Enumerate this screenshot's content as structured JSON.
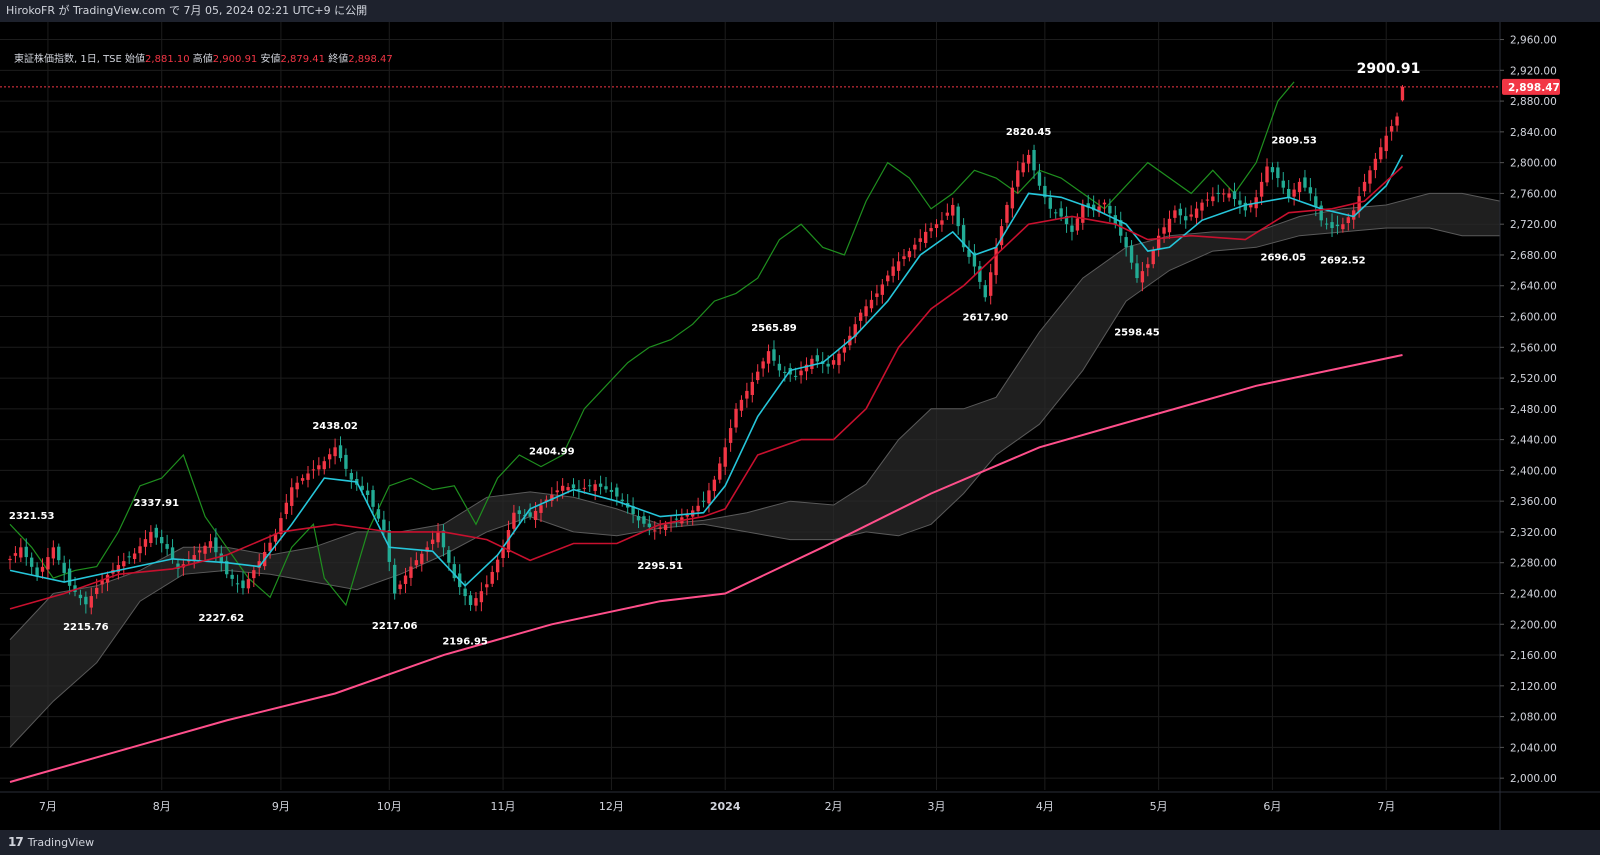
{
  "header": {
    "publish_line": "HirokoFR が TradingView.com で 7月 05, 2024 02:21 UTC+9 に公開"
  },
  "legend": {
    "symbol": "東証株価指数, 1日, TSE",
    "open_label": "始値",
    "open": "2,881.10",
    "high_label": "高値",
    "high": "2,900.91",
    "low_label": "安値",
    "low": "2,879.41",
    "close_label": "終値",
    "close": "2,898.47"
  },
  "footer": {
    "brand": "TradingView",
    "logo_icon": "tradingview-logo-icon"
  },
  "colors": {
    "up": "#f23645",
    "down": "#22ab94",
    "tenkan": "#26c6da",
    "kijun": "#c8102e",
    "chikou": "#1f8f1f",
    "sma": "#ff4f8b",
    "cloud": "#2a2a2a",
    "grid": "#1c1c1c"
  },
  "chart_data": {
    "type": "candlestick",
    "title": "東証株価指数, 1日, TSE",
    "ylim": [
      1995,
      2975
    ],
    "y_ticks": [
      "2,000.00",
      "2,040.00",
      "2,080.00",
      "2,120.00",
      "2,160.00",
      "2,200.00",
      "2,240.00",
      "2,280.00",
      "2,320.00",
      "2,360.00",
      "2,400.00",
      "2,440.00",
      "2,480.00",
      "2,520.00",
      "2,560.00",
      "2,600.00",
      "2,640.00",
      "2,680.00",
      "2,720.00",
      "2,760.00",
      "2,800.00",
      "2,840.00",
      "2,880.00",
      "2,920.00",
      "2,960.00"
    ],
    "y_tick_values": [
      2000,
      2040,
      2080,
      2120,
      2160,
      2200,
      2240,
      2280,
      2320,
      2360,
      2400,
      2440,
      2480,
      2520,
      2560,
      2600,
      2640,
      2680,
      2720,
      2760,
      2800,
      2840,
      2880,
      2920,
      2960
    ],
    "x_range_bars": [
      0,
      275
    ],
    "x_labels": [
      {
        "label": "7月",
        "bar": 7
      },
      {
        "label": "8月",
        "bar": 28
      },
      {
        "label": "9月",
        "bar": 50
      },
      {
        "label": "10月",
        "bar": 70
      },
      {
        "label": "11月",
        "bar": 91
      },
      {
        "label": "12月",
        "bar": 111
      },
      {
        "label": "2024",
        "bar": 132
      },
      {
        "label": "2月",
        "bar": 152
      },
      {
        "label": "3月",
        "bar": 171
      },
      {
        "label": "4月",
        "bar": 191
      },
      {
        "label": "5月",
        "bar": 212
      },
      {
        "label": "6月",
        "bar": 233
      },
      {
        "label": "7月",
        "bar": 254
      }
    ],
    "last_price": {
      "value": 2898.47,
      "label": "2,898.47"
    },
    "high_marker": {
      "value": 2900.91,
      "label": "2900.91"
    },
    "close_anchors": [
      [
        0,
        2285
      ],
      [
        2,
        2300
      ],
      [
        5,
        2262
      ],
      [
        8,
        2300
      ],
      [
        11,
        2250
      ],
      [
        14,
        2226
      ],
      [
        17,
        2258
      ],
      [
        20,
        2277
      ],
      [
        23,
        2292
      ],
      [
        26,
        2320
      ],
      [
        29,
        2298
      ],
      [
        31,
        2272
      ],
      [
        34,
        2290
      ],
      [
        37,
        2308
      ],
      [
        40,
        2265
      ],
      [
        43,
        2247
      ],
      [
        46,
        2282
      ],
      [
        49,
        2318
      ],
      [
        52,
        2378
      ],
      [
        55,
        2396
      ],
      [
        58,
        2412
      ],
      [
        60,
        2430
      ],
      [
        63,
        2388
      ],
      [
        66,
        2368
      ],
      [
        69,
        2322
      ],
      [
        71,
        2240
      ],
      [
        74,
        2275
      ],
      [
        77,
        2300
      ],
      [
        79,
        2320
      ],
      [
        82,
        2260
      ],
      [
        85,
        2225
      ],
      [
        88,
        2252
      ],
      [
        91,
        2300
      ],
      [
        93,
        2345
      ],
      [
        96,
        2340
      ],
      [
        99,
        2362
      ],
      [
        102,
        2380
      ],
      [
        105,
        2375
      ],
      [
        108,
        2382
      ],
      [
        111,
        2372
      ],
      [
        113,
        2360
      ],
      [
        116,
        2335
      ],
      [
        119,
        2322
      ],
      [
        122,
        2333
      ],
      [
        125,
        2342
      ],
      [
        128,
        2360
      ],
      [
        130,
        2388
      ],
      [
        132,
        2430
      ],
      [
        134,
        2480
      ],
      [
        137,
        2515
      ],
      [
        140,
        2555
      ],
      [
        142,
        2530
      ],
      [
        145,
        2522
      ],
      [
        148,
        2545
      ],
      [
        151,
        2535
      ],
      [
        154,
        2560
      ],
      [
        157,
        2605
      ],
      [
        160,
        2630
      ],
      [
        163,
        2665
      ],
      [
        166,
        2685
      ],
      [
        169,
        2710
      ],
      [
        172,
        2725
      ],
      [
        174,
        2745
      ],
      [
        176,
        2690
      ],
      [
        178,
        2665
      ],
      [
        180,
        2625
      ],
      [
        182,
        2690
      ],
      [
        184,
        2745
      ],
      [
        186,
        2790
      ],
      [
        188,
        2810
      ],
      [
        190,
        2770
      ],
      [
        192,
        2740
      ],
      [
        194,
        2730
      ],
      [
        196,
        2710
      ],
      [
        198,
        2745
      ],
      [
        200,
        2738
      ],
      [
        202,
        2748
      ],
      [
        204,
        2720
      ],
      [
        206,
        2690
      ],
      [
        208,
        2650
      ],
      [
        210,
        2668
      ],
      [
        212,
        2705
      ],
      [
        215,
        2738
      ],
      [
        217,
        2725
      ],
      [
        220,
        2748
      ],
      [
        223,
        2760
      ],
      [
        225,
        2760
      ],
      [
        228,
        2738
      ],
      [
        230,
        2755
      ],
      [
        232,
        2795
      ],
      [
        234,
        2780
      ],
      [
        236,
        2755
      ],
      [
        238,
        2775
      ],
      [
        240,
        2760
      ],
      [
        242,
        2725
      ],
      [
        244,
        2715
      ],
      [
        246,
        2720
      ],
      [
        248,
        2738
      ],
      [
        250,
        2775
      ],
      [
        252,
        2805
      ],
      [
        254,
        2835
      ],
      [
        256,
        2860
      ],
      [
        257,
        2898.47
      ]
    ],
    "annotations": [
      {
        "label": "2321.53",
        "bar": 4,
        "value": 2321.53,
        "pos": "above"
      },
      {
        "label": "2215.76",
        "bar": 14,
        "value": 2215.76,
        "pos": "below"
      },
      {
        "label": "2337.91",
        "bar": 27,
        "value": 2337.91,
        "pos": "above"
      },
      {
        "label": "2227.62",
        "bar": 39,
        "value": 2227.62,
        "pos": "below"
      },
      {
        "label": "2438.02",
        "bar": 60,
        "value": 2438.02,
        "pos": "above"
      },
      {
        "label": "2217.06",
        "bar": 71,
        "value": 2217.06,
        "pos": "below"
      },
      {
        "label": "2196.95",
        "bar": 84,
        "value": 2196.95,
        "pos": "below"
      },
      {
        "label": "2404.99",
        "bar": 100,
        "value": 2404.99,
        "pos": "above"
      },
      {
        "label": "2295.51",
        "bar": 120,
        "value": 2295.51,
        "pos": "below"
      },
      {
        "label": "2565.89",
        "bar": 141,
        "value": 2565.89,
        "pos": "above"
      },
      {
        "label": "2617.90",
        "bar": 180,
        "value": 2617.9,
        "pos": "below"
      },
      {
        "label": "2820.45",
        "bar": 188,
        "value": 2820.45,
        "pos": "above"
      },
      {
        "label": "2598.45",
        "bar": 208,
        "value": 2598.45,
        "pos": "below"
      },
      {
        "label": "2809.53",
        "bar": 237,
        "value": 2809.53,
        "pos": "above"
      },
      {
        "label": "2696.05",
        "bar": 235,
        "value": 2696.05,
        "pos": "below"
      },
      {
        "label": "2692.52",
        "bar": 246,
        "value": 2692.52,
        "pos": "below"
      }
    ],
    "sma_anchors": [
      [
        0,
        1995
      ],
      [
        20,
        2035
      ],
      [
        40,
        2075
      ],
      [
        60,
        2110
      ],
      [
        80,
        2160
      ],
      [
        100,
        2200
      ],
      [
        120,
        2230
      ],
      [
        132,
        2240
      ],
      [
        150,
        2300
      ],
      [
        170,
        2370
      ],
      [
        190,
        2430
      ],
      [
        210,
        2470
      ],
      [
        230,
        2510
      ],
      [
        257,
        2550
      ]
    ],
    "cloud_top": [
      [
        0,
        2180
      ],
      [
        8,
        2240
      ],
      [
        16,
        2250
      ],
      [
        24,
        2270
      ],
      [
        32,
        2300
      ],
      [
        40,
        2300
      ],
      [
        48,
        2290
      ],
      [
        56,
        2300
      ],
      [
        64,
        2320
      ],
      [
        72,
        2320
      ],
      [
        80,
        2330
      ],
      [
        88,
        2365
      ],
      [
        96,
        2372
      ],
      [
        104,
        2365
      ],
      [
        112,
        2350
      ],
      [
        120,
        2330
      ],
      [
        128,
        2335
      ],
      [
        136,
        2345
      ],
      [
        144,
        2360
      ],
      [
        152,
        2355
      ],
      [
        158,
        2382
      ],
      [
        164,
        2440
      ],
      [
        170,
        2480
      ],
      [
        176,
        2480
      ],
      [
        182,
        2495
      ],
      [
        190,
        2580
      ],
      [
        198,
        2650
      ],
      [
        206,
        2690
      ],
      [
        214,
        2705
      ],
      [
        222,
        2710
      ],
      [
        230,
        2710
      ],
      [
        238,
        2730
      ],
      [
        246,
        2740
      ],
      [
        254,
        2745
      ],
      [
        262,
        2760
      ],
      [
        268,
        2760
      ],
      [
        275,
        2750
      ]
    ],
    "cloud_bottom": [
      [
        0,
        2040
      ],
      [
        8,
        2100
      ],
      [
        16,
        2150
      ],
      [
        24,
        2230
      ],
      [
        32,
        2265
      ],
      [
        40,
        2270
      ],
      [
        48,
        2265
      ],
      [
        56,
        2255
      ],
      [
        64,
        2245
      ],
      [
        72,
        2265
      ],
      [
        80,
        2290
      ],
      [
        88,
        2320
      ],
      [
        96,
        2340
      ],
      [
        104,
        2320
      ],
      [
        112,
        2315
      ],
      [
        120,
        2325
      ],
      [
        128,
        2330
      ],
      [
        136,
        2320
      ],
      [
        144,
        2310
      ],
      [
        152,
        2310
      ],
      [
        158,
        2320
      ],
      [
        164,
        2315
      ],
      [
        170,
        2330
      ],
      [
        176,
        2370
      ],
      [
        182,
        2420
      ],
      [
        190,
        2460
      ],
      [
        198,
        2530
      ],
      [
        206,
        2620
      ],
      [
        214,
        2660
      ],
      [
        222,
        2685
      ],
      [
        230,
        2690
      ],
      [
        238,
        2705
      ],
      [
        246,
        2710
      ],
      [
        254,
        2715
      ],
      [
        262,
        2715
      ],
      [
        268,
        2705
      ],
      [
        275,
        2705
      ]
    ],
    "tenkan_anchors": [
      [
        0,
        2270
      ],
      [
        10,
        2255
      ],
      [
        20,
        2270
      ],
      [
        30,
        2285
      ],
      [
        40,
        2280
      ],
      [
        46,
        2275
      ],
      [
        52,
        2330
      ],
      [
        58,
        2390
      ],
      [
        64,
        2385
      ],
      [
        70,
        2300
      ],
      [
        78,
        2295
      ],
      [
        84,
        2250
      ],
      [
        90,
        2290
      ],
      [
        96,
        2350
      ],
      [
        104,
        2375
      ],
      [
        112,
        2360
      ],
      [
        120,
        2340
      ],
      [
        128,
        2345
      ],
      [
        132,
        2380
      ],
      [
        138,
        2470
      ],
      [
        144,
        2530
      ],
      [
        150,
        2540
      ],
      [
        156,
        2575
      ],
      [
        162,
        2620
      ],
      [
        168,
        2680
      ],
      [
        174,
        2710
      ],
      [
        178,
        2680
      ],
      [
        182,
        2690
      ],
      [
        188,
        2760
      ],
      [
        194,
        2755
      ],
      [
        200,
        2740
      ],
      [
        206,
        2720
      ],
      [
        210,
        2685
      ],
      [
        214,
        2690
      ],
      [
        220,
        2725
      ],
      [
        228,
        2745
      ],
      [
        236,
        2755
      ],
      [
        242,
        2740
      ],
      [
        248,
        2730
      ],
      [
        254,
        2770
      ],
      [
        257,
        2810
      ]
    ],
    "kijun_anchors": [
      [
        0,
        2220
      ],
      [
        10,
        2240
      ],
      [
        20,
        2265
      ],
      [
        30,
        2272
      ],
      [
        40,
        2290
      ],
      [
        50,
        2320
      ],
      [
        60,
        2330
      ],
      [
        70,
        2320
      ],
      [
        80,
        2320
      ],
      [
        88,
        2310
      ],
      [
        96,
        2283
      ],
      [
        104,
        2305
      ],
      [
        112,
        2305
      ],
      [
        120,
        2330
      ],
      [
        128,
        2340
      ],
      [
        132,
        2350
      ],
      [
        138,
        2420
      ],
      [
        146,
        2440
      ],
      [
        152,
        2440
      ],
      [
        158,
        2480
      ],
      [
        164,
        2560
      ],
      [
        170,
        2610
      ],
      [
        176,
        2640
      ],
      [
        182,
        2680
      ],
      [
        188,
        2720
      ],
      [
        196,
        2730
      ],
      [
        204,
        2720
      ],
      [
        210,
        2700
      ],
      [
        218,
        2705
      ],
      [
        228,
        2700
      ],
      [
        236,
        2735
      ],
      [
        244,
        2740
      ],
      [
        250,
        2750
      ],
      [
        257,
        2795
      ]
    ],
    "chikou_anchors": [
      [
        0,
        2330
      ],
      [
        4,
        2300
      ],
      [
        8,
        2260
      ],
      [
        12,
        2270
      ],
      [
        16,
        2275
      ],
      [
        20,
        2320
      ],
      [
        24,
        2380
      ],
      [
        28,
        2390
      ],
      [
        32,
        2420
      ],
      [
        36,
        2340
      ],
      [
        40,
        2300
      ],
      [
        44,
        2260
      ],
      [
        48,
        2235
      ],
      [
        52,
        2300
      ],
      [
        56,
        2330
      ],
      [
        58,
        2260
      ],
      [
        62,
        2225
      ],
      [
        66,
        2320
      ],
      [
        70,
        2380
      ],
      [
        74,
        2390
      ],
      [
        78,
        2375
      ],
      [
        82,
        2380
      ],
      [
        86,
        2330
      ],
      [
        90,
        2390
      ],
      [
        94,
        2420
      ],
      [
        98,
        2405
      ],
      [
        102,
        2420
      ],
      [
        106,
        2480
      ],
      [
        110,
        2510
      ],
      [
        114,
        2540
      ],
      [
        118,
        2560
      ],
      [
        122,
        2570
      ],
      [
        126,
        2590
      ],
      [
        130,
        2620
      ],
      [
        134,
        2630
      ],
      [
        138,
        2650
      ],
      [
        142,
        2700
      ],
      [
        146,
        2720
      ],
      [
        150,
        2690
      ],
      [
        154,
        2680
      ],
      [
        158,
        2750
      ],
      [
        162,
        2800
      ],
      [
        166,
        2780
      ],
      [
        170,
        2740
      ],
      [
        174,
        2760
      ],
      [
        178,
        2790
      ],
      [
        182,
        2780
      ],
      [
        186,
        2760
      ],
      [
        190,
        2790
      ],
      [
        194,
        2780
      ],
      [
        198,
        2760
      ],
      [
        202,
        2740
      ],
      [
        206,
        2770
      ],
      [
        210,
        2800
      ],
      [
        214,
        2780
      ],
      [
        218,
        2760
      ],
      [
        222,
        2790
      ],
      [
        226,
        2760
      ],
      [
        230,
        2800
      ],
      [
        234,
        2880
      ],
      [
        237,
        2905
      ]
    ]
  }
}
